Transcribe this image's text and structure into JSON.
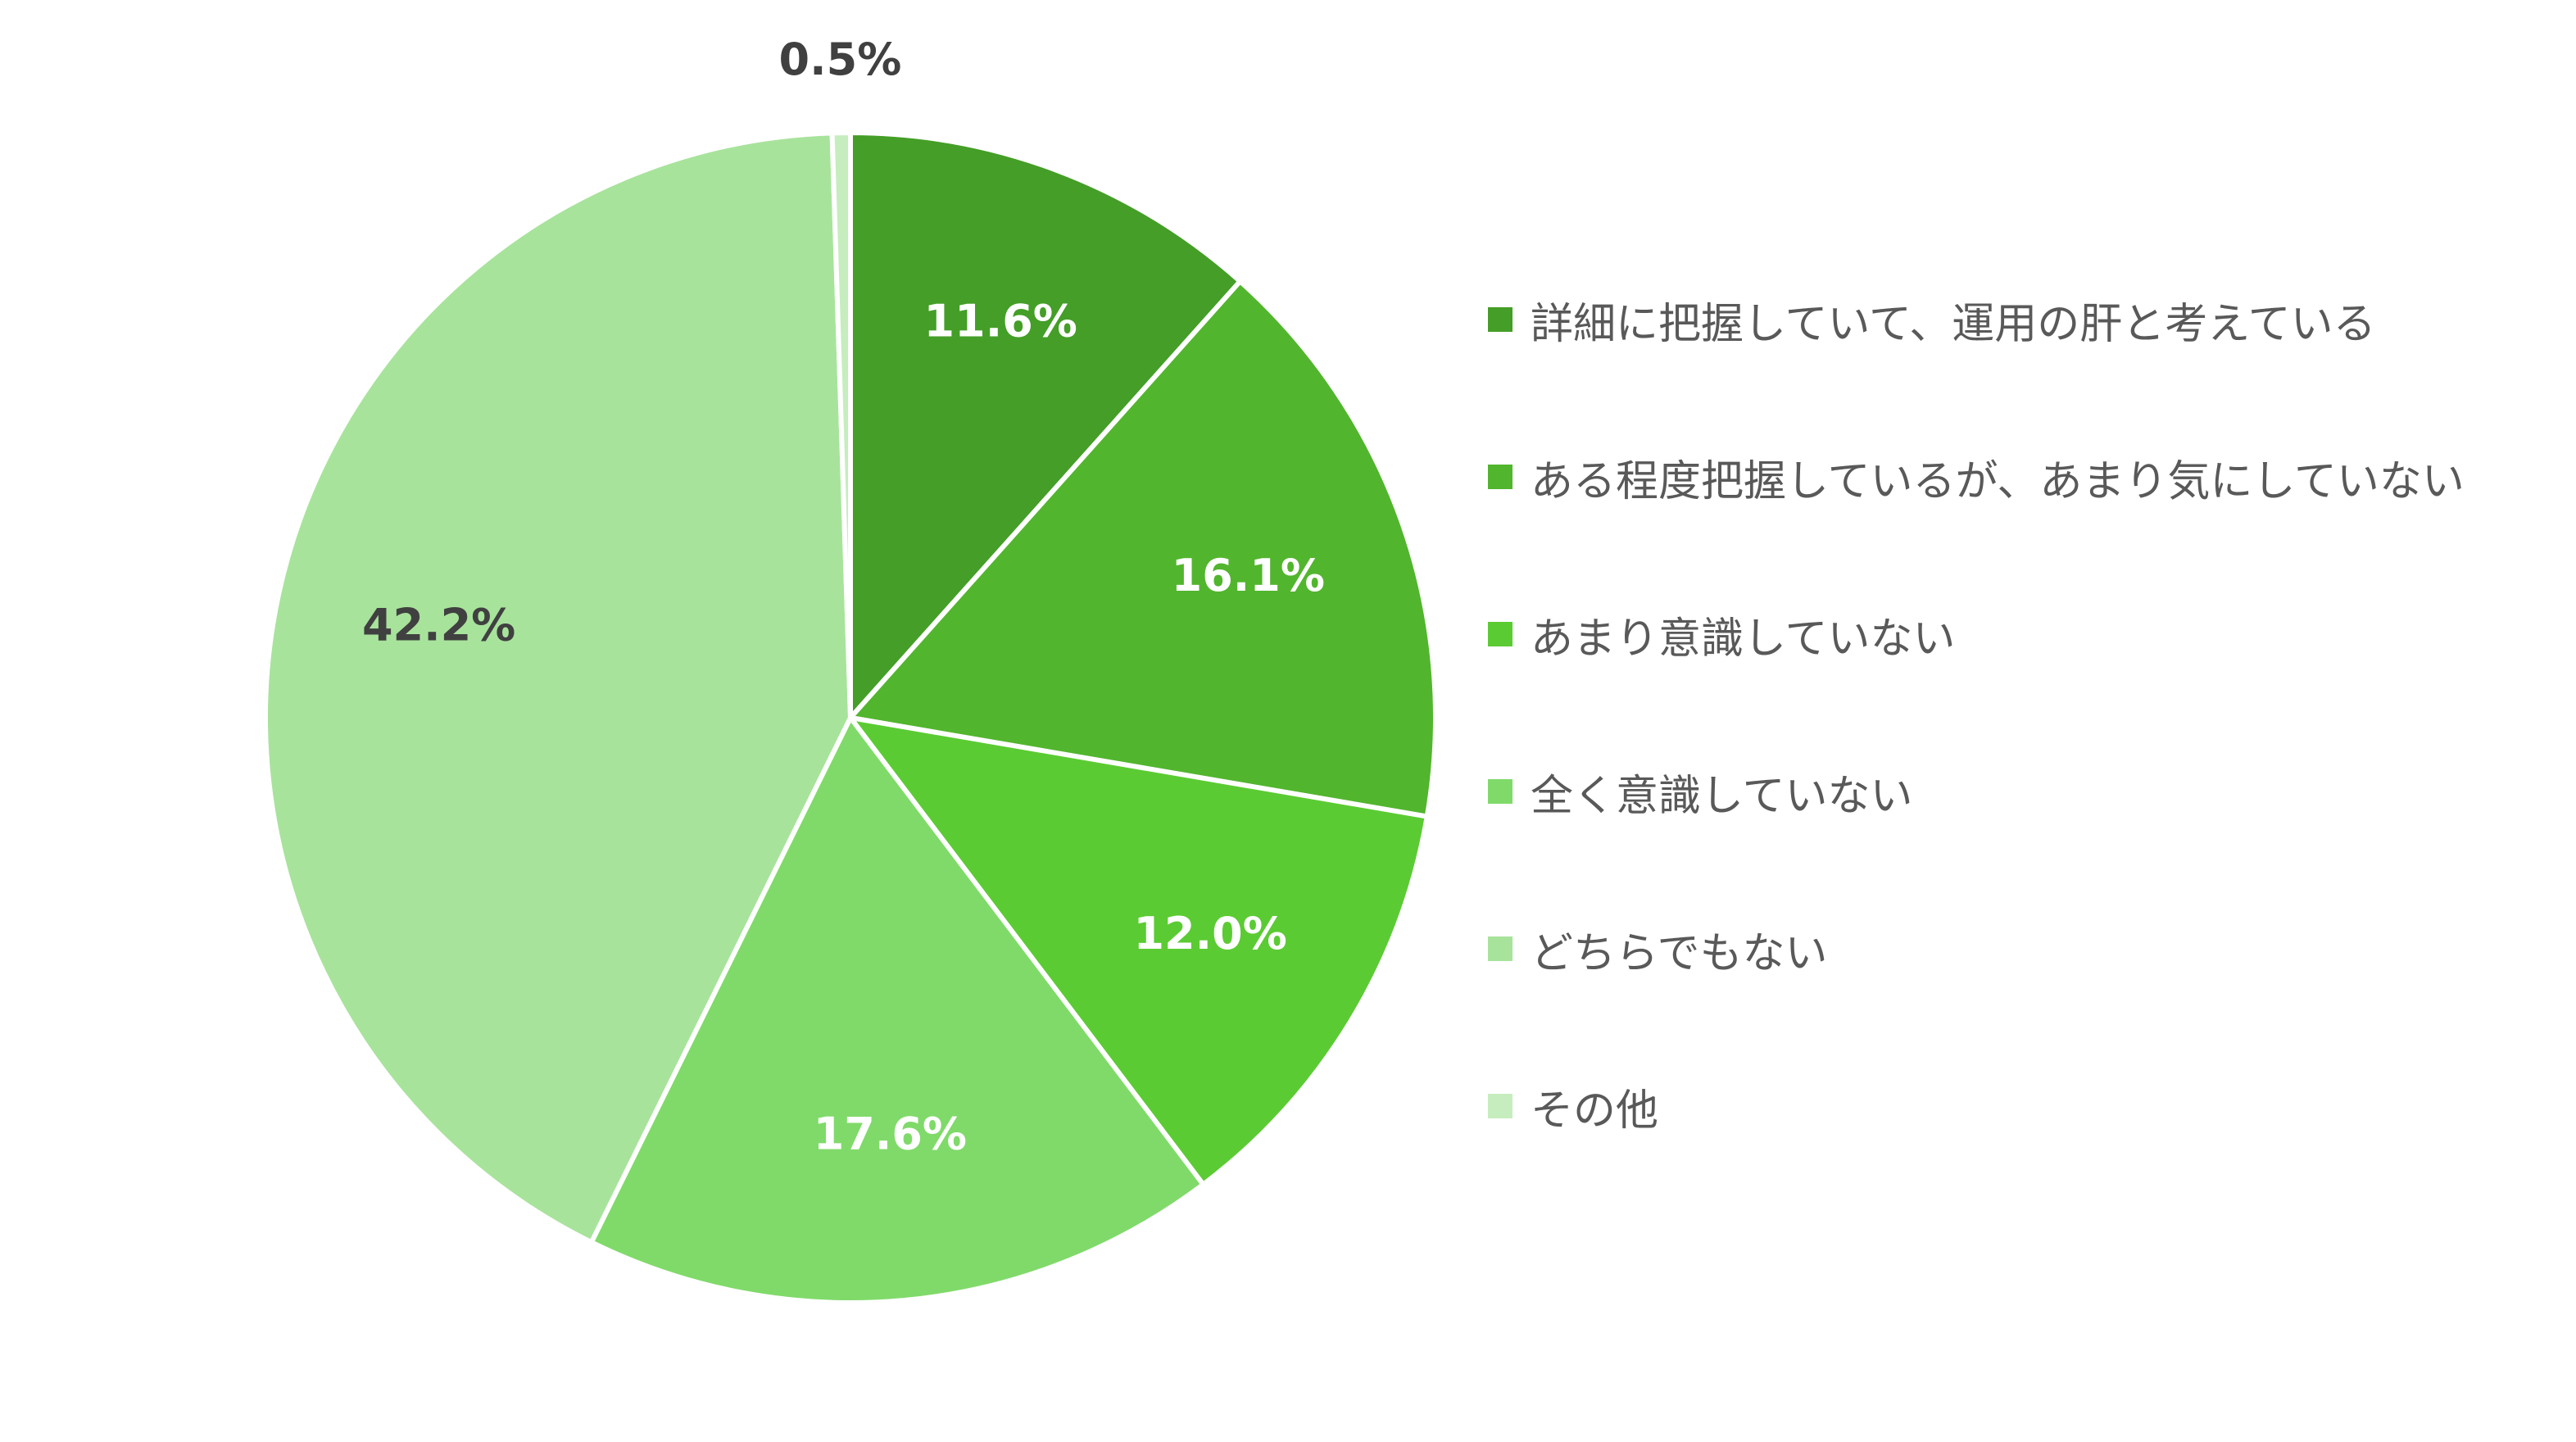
{
  "chart_data": {
    "type": "pie",
    "title": "",
    "categories": [
      "詳細に把握していて、運用の肝と考えている",
      "ある程度把握しているが、あまり気にしていない",
      "あまり意識していない",
      "全く意識していない",
      "どちらでもない",
      "その他"
    ],
    "values": [
      11.6,
      16.1,
      12.0,
      17.6,
      42.2,
      0.5
    ],
    "value_labels": [
      "11.6%",
      "16.1%",
      "12.0%",
      "17.6%",
      "42.2%",
      "0.5%"
    ],
    "colors": [
      "#449E27",
      "#52B52E",
      "#5BCB33",
      "#80DA6A",
      "#A8E39C",
      "#C6EDBE"
    ],
    "label_colors": [
      "#ffffff",
      "#ffffff",
      "#ffffff",
      "#ffffff",
      "#404040",
      "#404040"
    ],
    "start_angle_deg": 0,
    "direction": "clockwise",
    "legend_position": "right"
  }
}
